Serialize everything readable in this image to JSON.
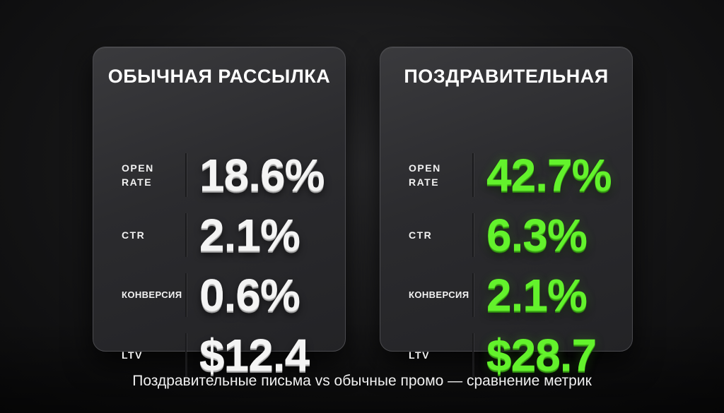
{
  "left_card": {
    "title": "ОБЫЧНАЯ РАССЫЛКА",
    "metrics": [
      {
        "label": "OPEN\nRATE",
        "value": "18.6%"
      },
      {
        "label": "CTR",
        "value": "2.1%"
      },
      {
        "label": "КОНВЕРСИЯ",
        "value": "0.6%"
      },
      {
        "label": "LTV",
        "value": "$12.4"
      }
    ]
  },
  "right_card": {
    "title": "ПОЗДРАВИТЕЛЬНАЯ",
    "metrics": [
      {
        "label": "OPEN\nRATE",
        "value": "42.7%"
      },
      {
        "label": "CTR",
        "value": "6.3%"
      },
      {
        "label": "КОНВЕРСИЯ",
        "value": "2.1%"
      },
      {
        "label": "LTV",
        "value": "$28.7"
      }
    ]
  },
  "caption": "Поздравительные письма vs обычные промо — сравнение метрик",
  "colors": {
    "accent_green": "#63f22c",
    "value_white": "#f4f4f4",
    "card_background": "#2b2b2e"
  }
}
